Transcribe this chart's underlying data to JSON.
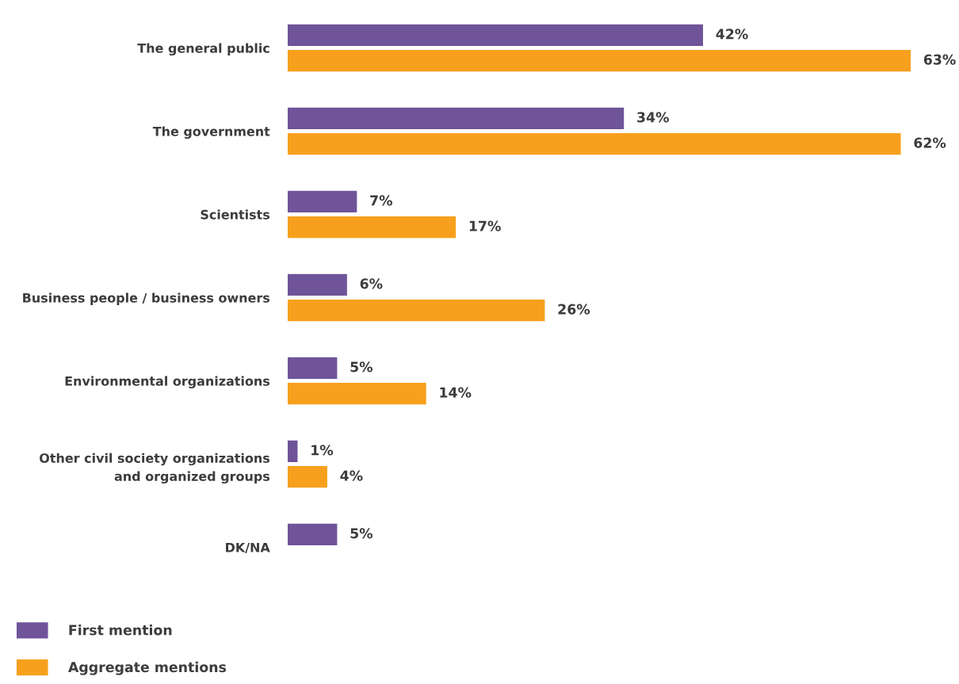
{
  "chart_data": {
    "type": "bar",
    "orientation": "horizontal",
    "categories": [
      "The general public",
      "The government",
      "Scientists",
      "Business people / business owners",
      "Environmental organizations",
      "Other civil society organizations\nand organized groups",
      "DK/NA"
    ],
    "series": [
      {
        "name": "First mention",
        "color": "#6f5499",
        "values": [
          42,
          34,
          7,
          6,
          5,
          1,
          5
        ],
        "value_labels": [
          "42%",
          "34%",
          "7%",
          "6%",
          "5%",
          "1%",
          "5%"
        ]
      },
      {
        "name": "Aggregate mentions",
        "color": "#f7a01d",
        "values": [
          63,
          62,
          17,
          26,
          14,
          4,
          null
        ],
        "value_labels": [
          "63%",
          "62%",
          "17%",
          "26%",
          "14%",
          "4%",
          null
        ]
      }
    ],
    "legend": "bottom left",
    "grid": false
  }
}
